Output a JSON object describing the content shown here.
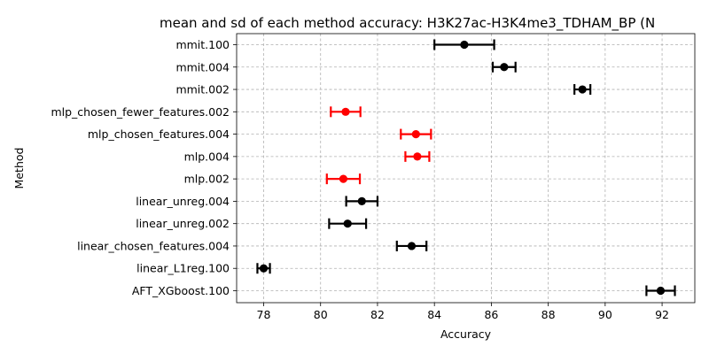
{
  "chart_data": {
    "type": "scatter",
    "title": "mean and sd of each method accuracy: H3K27ac-H3K4me3_TDHAM_BP (N",
    "xlabel": "Accuracy",
    "ylabel": "Method",
    "xlim": [
      77.05,
      93.15
    ],
    "x_ticks": [
      78,
      80,
      82,
      84,
      86,
      88,
      90,
      92
    ],
    "grid": true,
    "colors": {
      "default": "#000000",
      "highlight": "#ff0000"
    },
    "points": [
      {
        "method": "mmit.100",
        "mean": 85.05,
        "sd": 1.05,
        "color": "#000000"
      },
      {
        "method": "mmit.004",
        "mean": 86.45,
        "sd": 0.4,
        "color": "#000000"
      },
      {
        "method": "mmit.002",
        "mean": 89.2,
        "sd": 0.28,
        "color": "#000000"
      },
      {
        "method": "mlp_chosen_fewer_features.002",
        "mean": 80.88,
        "sd": 0.52,
        "color": "#ff0000"
      },
      {
        "method": "mlp_chosen_features.004",
        "mean": 83.35,
        "sd": 0.53,
        "color": "#ff0000"
      },
      {
        "method": "mlp.004",
        "mean": 83.4,
        "sd": 0.42,
        "color": "#ff0000"
      },
      {
        "method": "mlp.002",
        "mean": 80.8,
        "sd": 0.58,
        "color": "#ff0000"
      },
      {
        "method": "linear_unreg.004",
        "mean": 81.45,
        "sd": 0.55,
        "color": "#000000"
      },
      {
        "method": "linear_unreg.002",
        "mean": 80.95,
        "sd": 0.65,
        "color": "#000000"
      },
      {
        "method": "linear_chosen_features.004",
        "mean": 83.2,
        "sd": 0.52,
        "color": "#000000"
      },
      {
        "method": "linear_L1reg.100",
        "mean": 78.0,
        "sd": 0.22,
        "color": "#000000"
      },
      {
        "method": "AFT_XGboost.100",
        "mean": 91.95,
        "sd": 0.5,
        "color": "#000000"
      }
    ]
  }
}
